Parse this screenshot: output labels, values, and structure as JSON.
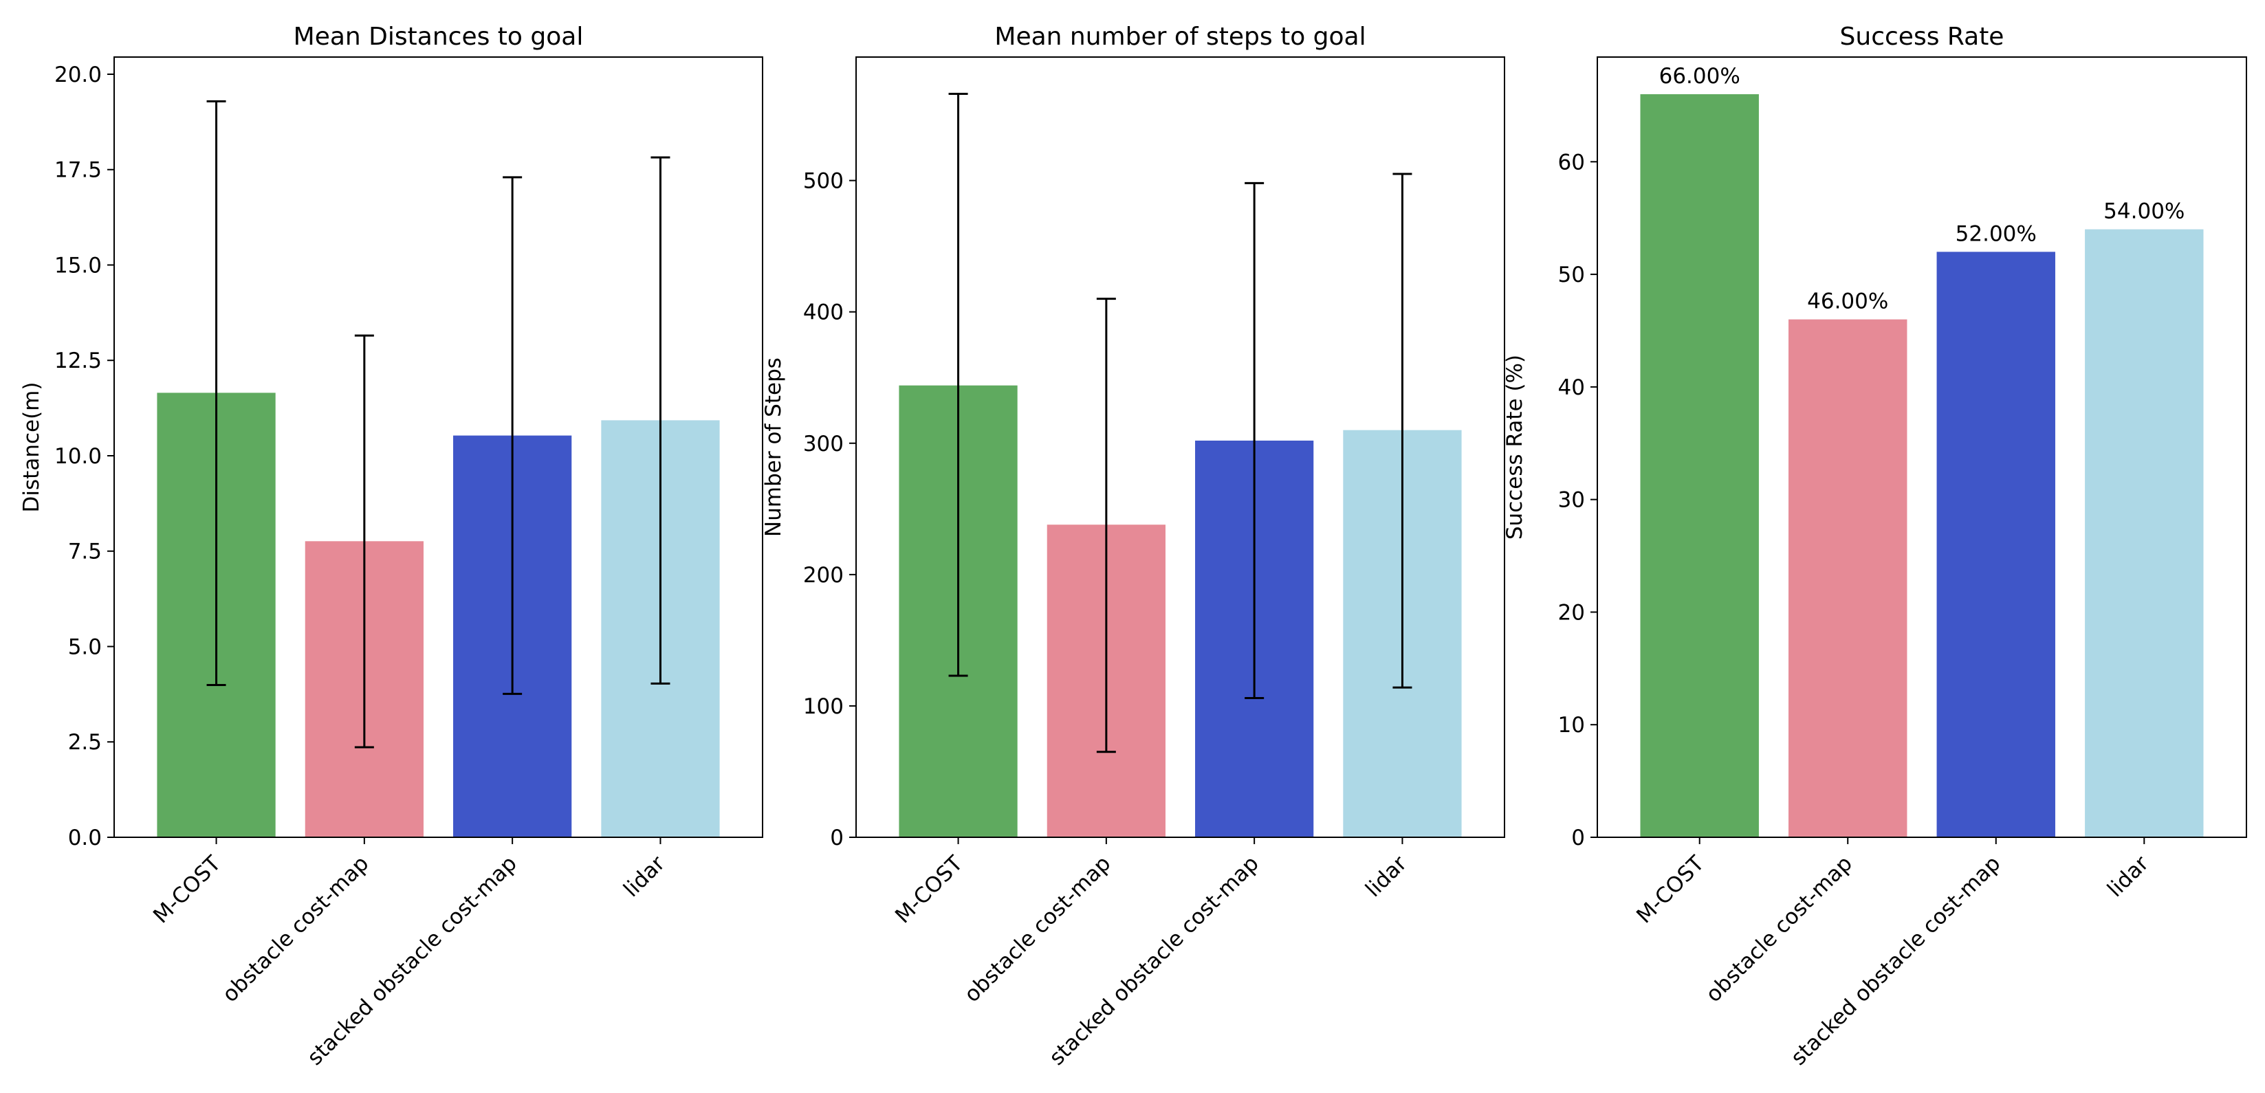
{
  "chart_data": [
    {
      "type": "bar",
      "title": "Mean Distances to goal",
      "xlabel": "",
      "ylabel": "Distance(m)",
      "categories": [
        "M-COST",
        "obstacle cost-map",
        "stacked obstacle cost-map",
        "lidar"
      ],
      "values": [
        11.65,
        7.76,
        10.53,
        10.93
      ],
      "error_low": [
        3.99,
        2.36,
        3.76,
        4.03
      ],
      "error_high": [
        19.29,
        13.15,
        17.3,
        17.82
      ],
      "colors": [
        "#5faa5f",
        "#e68a96",
        "#3f56c8",
        "#add8e6"
      ],
      "ylim": [
        0,
        20.45
      ],
      "yticks": [
        0,
        2.5,
        5,
        7.5,
        10,
        12.5,
        15,
        17.5,
        20
      ],
      "ytick_labels": [
        "0.0",
        "2.5",
        "5.0",
        "7.5",
        "10.0",
        "12.5",
        "15.0",
        "17.5",
        "20.0"
      ],
      "grid": false,
      "data_labels": []
    },
    {
      "type": "bar",
      "title": "Mean number of steps to goal",
      "xlabel": "",
      "ylabel": "Number of Steps",
      "categories": [
        "M-COST",
        "obstacle cost-map",
        "stacked obstacle cost-map",
        "lidar"
      ],
      "values": [
        344,
        238,
        302,
        310
      ],
      "error_low": [
        123,
        65,
        106,
        114
      ],
      "error_high": [
        566,
        410,
        498,
        505
      ],
      "colors": [
        "#5faa5f",
        "#e68a96",
        "#3f56c8",
        "#add8e6"
      ],
      "ylim": [
        0,
        594
      ],
      "yticks": [
        0,
        100,
        200,
        300,
        400,
        500
      ],
      "ytick_labels": [
        "0",
        "100",
        "200",
        "300",
        "400",
        "500"
      ],
      "grid": false,
      "data_labels": []
    },
    {
      "type": "bar",
      "title": "Success Rate",
      "xlabel": "",
      "ylabel": "Success Rate (%)",
      "categories": [
        "M-COST",
        "obstacle cost-map",
        "stacked obstacle cost-map",
        "lidar"
      ],
      "values": [
        66,
        46,
        52,
        54
      ],
      "colors": [
        "#5faa5f",
        "#e68a96",
        "#3f56c8",
        "#add8e6"
      ],
      "ylim": [
        0,
        69.3
      ],
      "yticks": [
        0,
        10,
        20,
        30,
        40,
        50,
        60
      ],
      "ytick_labels": [
        "0",
        "10",
        "20",
        "30",
        "40",
        "50",
        "60"
      ],
      "grid": false,
      "data_labels": [
        "66.00%",
        "46.00%",
        "52.00%",
        "54.00%"
      ]
    }
  ]
}
